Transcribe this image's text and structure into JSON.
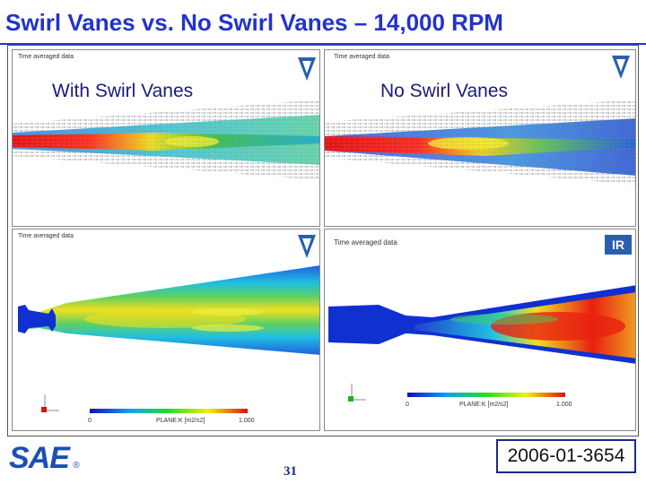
{
  "slide": {
    "title": "Swirl Vanes vs. No Swirl Vanes – 14,000 RPM",
    "page_number": "31",
    "paper_id": "2006-01-3654",
    "title_color": "#2233cc",
    "sae_logo_text": "SAE",
    "registered_mark": "®"
  },
  "panels": {
    "top_left": {
      "label": "With Swirl Vanes",
      "caption": "Time averaged data",
      "logo": "V"
    },
    "top_right": {
      "label": "No Swirl Vanes",
      "caption": "Time averaged data",
      "logo": "V"
    },
    "bottom_left": {
      "caption": "Time averaged data",
      "logo": "V",
      "scale_min": "0",
      "scale_max": "1.000",
      "scale_label": "PLANE:K [m2/s2]"
    },
    "bottom_right": {
      "caption": "Time averaged data",
      "logo": "IR",
      "scale_min": "0",
      "scale_max": "1.000",
      "scale_label": "PLANE:K [m2/s2]"
    }
  },
  "icons": [
    "sae-logo",
    "vista-logo",
    "ir-logo",
    "axis-triad-icon"
  ]
}
